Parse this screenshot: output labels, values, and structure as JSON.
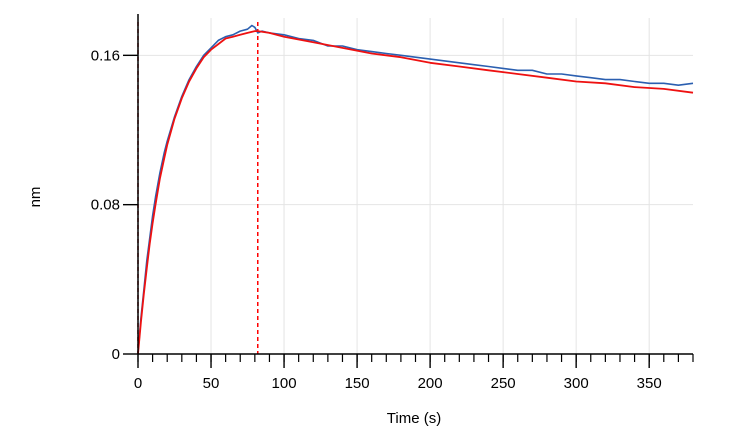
{
  "chart_data": {
    "type": "line",
    "title": "",
    "xlabel": "Time (s)",
    "ylabel": "nm",
    "xlim": [
      0,
      380
    ],
    "ylim": [
      0,
      0.18
    ],
    "x_ticks": [
      0,
      50,
      100,
      150,
      200,
      250,
      300,
      350
    ],
    "x_tick_labels": [
      "0",
      "50",
      "100",
      "150",
      "200",
      "250",
      "300",
      "350"
    ],
    "y_ticks": [
      0,
      0.08,
      0.16
    ],
    "y_tick_labels": [
      "0",
      "0.08",
      "0.16"
    ],
    "x_minor_step": 10,
    "grid": true,
    "marker_lines": [
      {
        "x": 0,
        "color": "#cc2222",
        "style": "dashed"
      },
      {
        "x": 82,
        "color": "#ff0000",
        "style": "dashed"
      }
    ],
    "series": [
      {
        "color": "#2b5fb0",
        "x": [
          0,
          1,
          2,
          4,
          6,
          8,
          10,
          12,
          15,
          18,
          20,
          25,
          30,
          35,
          40,
          45,
          50,
          55,
          60,
          65,
          70,
          75,
          78,
          80,
          82,
          85,
          90,
          100,
          110,
          120,
          130,
          140,
          150,
          160,
          170,
          180,
          190,
          200,
          210,
          220,
          230,
          240,
          250,
          260,
          270,
          280,
          290,
          300,
          310,
          320,
          330,
          340,
          350,
          360,
          370,
          380
        ],
        "y": [
          0.001,
          0.01,
          0.019,
          0.034,
          0.05,
          0.062,
          0.074,
          0.084,
          0.097,
          0.108,
          0.114,
          0.127,
          0.138,
          0.147,
          0.154,
          0.16,
          0.164,
          0.168,
          0.17,
          0.171,
          0.173,
          0.174,
          0.176,
          0.175,
          0.172,
          0.173,
          0.172,
          0.171,
          0.169,
          0.168,
          0.165,
          0.165,
          0.163,
          0.162,
          0.161,
          0.16,
          0.159,
          0.158,
          0.157,
          0.156,
          0.155,
          0.154,
          0.153,
          0.152,
          0.152,
          0.15,
          0.15,
          0.149,
          0.148,
          0.147,
          0.147,
          0.146,
          0.145,
          0.145,
          0.144,
          0.145
        ]
      },
      {
        "color": "#ee1111",
        "x": [
          0,
          2,
          4,
          6,
          8,
          10,
          12,
          15,
          18,
          20,
          25,
          30,
          35,
          40,
          45,
          50,
          55,
          60,
          65,
          70,
          75,
          80,
          82,
          90,
          100,
          120,
          140,
          160,
          180,
          200,
          220,
          240,
          260,
          280,
          300,
          320,
          340,
          360,
          380
        ],
        "y": [
          0.0,
          0.017,
          0.032,
          0.046,
          0.059,
          0.07,
          0.08,
          0.094,
          0.105,
          0.112,
          0.126,
          0.137,
          0.146,
          0.153,
          0.159,
          0.163,
          0.166,
          0.169,
          0.17,
          0.171,
          0.172,
          0.173,
          0.173,
          0.172,
          0.17,
          0.167,
          0.164,
          0.161,
          0.159,
          0.156,
          0.154,
          0.152,
          0.15,
          0.148,
          0.146,
          0.145,
          0.143,
          0.142,
          0.14
        ]
      }
    ]
  }
}
